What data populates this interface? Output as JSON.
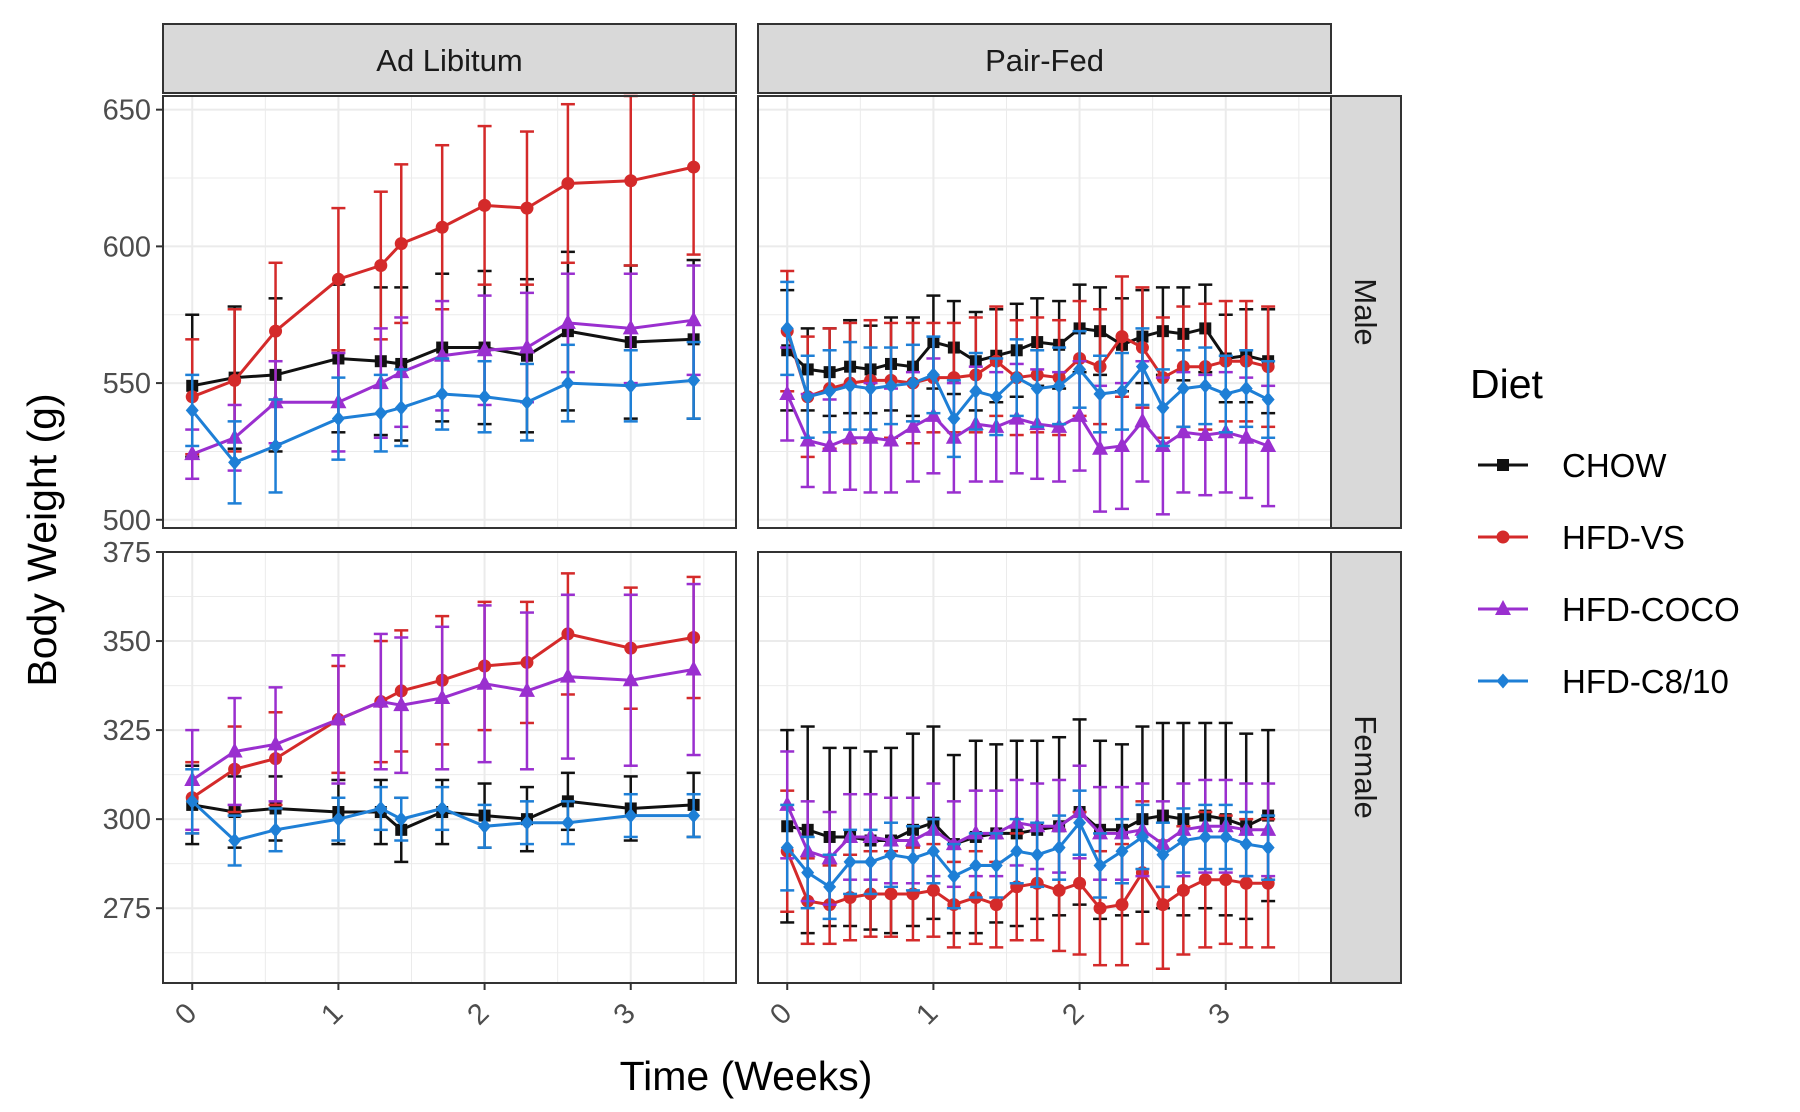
{
  "chart_data": {
    "type": "line",
    "facet_cols": [
      "Ad Libitum",
      "Pair-Fed"
    ],
    "facet_rows": [
      "Male",
      "Female"
    ],
    "xlabel": "Time (Weeks)",
    "ylabel": "Body Weight (g)",
    "x_ticks": [
      0,
      1,
      2,
      3
    ],
    "xlim": [
      -0.2,
      3.72
    ],
    "ylim": {
      "Male": [
        497,
        655
      ],
      "Female": [
        254,
        375
      ]
    },
    "y_ticks": {
      "Male": [
        500,
        550,
        600,
        650
      ],
      "Female": [
        275,
        300,
        325,
        350,
        375
      ]
    },
    "grid": true,
    "legend": {
      "title": "Diet",
      "position": "right",
      "entries": [
        "CHOW",
        "HFD-VS",
        "HFD-COCO",
        "HFD-C8/10"
      ]
    },
    "series_style": {
      "CHOW": {
        "color": "#111111",
        "marker": "square"
      },
      "HFD-VS": {
        "color": "#d42a2a",
        "marker": "circle"
      },
      "HFD-COCO": {
        "color": "#9a2fcf",
        "marker": "triangle"
      },
      "HFD-C8/10": {
        "color": "#1e7fd6",
        "marker": "diamond"
      }
    },
    "panels": [
      {
        "col": "Ad Libitum",
        "row": "Male",
        "x": [
          0,
          0.29,
          0.57,
          1.0,
          1.29,
          1.43,
          1.71,
          2.0,
          2.29,
          2.57,
          3.0,
          3.43
        ],
        "series": [
          {
            "name": "CHOW",
            "mean": [
              549,
              552,
              553,
              559,
              558,
              557,
              563,
              563,
              560,
              569,
              565,
              566
            ],
            "err": [
              26,
              26,
              28,
              27,
              27,
              28,
              27,
              28,
              28,
              29,
              28,
              29
            ]
          },
          {
            "name": "HFD-VS",
            "mean": [
              545,
              551,
              569,
              588,
              593,
              601,
              607,
              615,
              614,
              623,
              624,
              629
            ],
            "err": [
              21,
              26,
              25,
              26,
              27,
              29,
              30,
              29,
              28,
              29,
              31,
              32
            ]
          },
          {
            "name": "HFD-COCO",
            "mean": [
              524,
              530,
              543,
              543,
              550,
              554,
              560,
              562,
              563,
              572,
              570,
              573
            ],
            "err": [
              9,
              12,
              15,
              18,
              20,
              20,
              20,
              20,
              20,
              18,
              20,
              20
            ]
          },
          {
            "name": "HFD-C8/10",
            "mean": [
              540,
              521,
              527,
              537,
              539,
              541,
              546,
              545,
              543,
              550,
              549,
              551
            ],
            "err": [
              13,
              15,
              17,
              15,
              14,
              14,
              13,
              13,
              14,
              14,
              13,
              14
            ]
          }
        ]
      },
      {
        "col": "Pair-Fed",
        "row": "Male",
        "x": [
          0,
          0.14,
          0.29,
          0.43,
          0.57,
          0.71,
          0.86,
          1.0,
          1.14,
          1.29,
          1.43,
          1.57,
          1.71,
          1.86,
          2.0,
          2.14,
          2.29,
          2.43,
          2.57,
          2.71,
          2.86,
          3.0,
          3.14,
          3.29
        ],
        "series": [
          {
            "name": "CHOW",
            "mean": [
              562,
              555,
              554,
              556,
              555,
              557,
              556,
              565,
              563,
              558,
              560,
              562,
              565,
              564,
              570,
              569,
              564,
              567,
              569,
              568,
              570,
              559,
              560,
              558
            ],
            "err": [
              22,
              15,
              16,
              17,
              16,
              17,
              18,
              17,
              17,
              18,
              17,
              17,
              16,
              16,
              16,
              16,
              17,
              17,
              16,
              17,
              16,
              16,
              17,
              19
            ]
          },
          {
            "name": "HFD-VS",
            "mean": [
              569,
              545,
              548,
              550,
              551,
              551,
              550,
              552,
              552,
              553,
              558,
              552,
              553,
              552,
              559,
              556,
              567,
              563,
              552,
              556,
              556,
              558,
              558,
              556
            ],
            "err": [
              22,
              22,
              22,
              22,
              22,
              21,
              22,
              20,
              20,
              21,
              20,
              21,
              21,
              21,
              21,
              21,
              22,
              22,
              22,
              22,
              23,
              22,
              22,
              22
            ]
          },
          {
            "name": "HFD-COCO",
            "mean": [
              546,
              529,
              527,
              530,
              530,
              529,
              534,
              538,
              530,
              535,
              534,
              537,
              535,
              534,
              538,
              526,
              527,
              536,
              527,
              532,
              531,
              532,
              530,
              527
            ],
            "err": [
              17,
              17,
              17,
              19,
              20,
              19,
              20,
              21,
              20,
              21,
              20,
              20,
              20,
              20,
              20,
              23,
              23,
              22,
              25,
              22,
              22,
              22,
              22,
              22
            ]
          },
          {
            "name": "HFD-C8/10",
            "mean": [
              570,
              545,
              547,
              549,
              548,
              549,
              550,
              553,
              537,
              547,
              545,
              552,
              548,
              549,
              555,
              546,
              547,
              556,
              541,
              548,
              549,
              546,
              548,
              544
            ],
            "err": [
              17,
              15,
              15,
              16,
              15,
              14,
              14,
              14,
              14,
              14,
              14,
              14,
              14,
              14,
              14,
              14,
              14,
              14,
              14,
              14,
              14,
              14,
              14,
              14
            ]
          }
        ]
      },
      {
        "col": "Ad Libitum",
        "row": "Female",
        "x": [
          0,
          0.29,
          0.57,
          1.0,
          1.29,
          1.43,
          1.71,
          2.0,
          2.29,
          2.57,
          3.0,
          3.43
        ],
        "series": [
          {
            "name": "CHOW",
            "mean": [
              304,
              302,
              303,
              302,
              302,
              297,
              302,
              301,
              300,
              305,
              303,
              304
            ],
            "err": [
              11,
              10,
              9,
              9,
              9,
              9,
              9,
              9,
              9,
              8,
              9,
              9
            ]
          },
          {
            "name": "HFD-VS",
            "mean": [
              306,
              314,
              317,
              328,
              333,
              336,
              339,
              343,
              344,
              352,
              348,
              351
            ],
            "err": [
              10,
              12,
              13,
              15,
              17,
              17,
              18,
              18,
              17,
              17,
              17,
              17
            ]
          },
          {
            "name": "HFD-COCO",
            "mean": [
              311,
              319,
              321,
              328,
              333,
              332,
              334,
              338,
              336,
              340,
              339,
              342
            ],
            "err": [
              14,
              15,
              16,
              18,
              19,
              19,
              20,
              22,
              22,
              23,
              24,
              24
            ]
          },
          {
            "name": "HFD-C8/10",
            "mean": [
              305,
              294,
              297,
              300,
              303,
              300,
              303,
              298,
              299,
              299,
              301,
              301
            ],
            "err": [
              9,
              7,
              6,
              6,
              6,
              6,
              6,
              6,
              6,
              6,
              6,
              6
            ]
          }
        ]
      },
      {
        "col": "Pair-Fed",
        "row": "Female",
        "x": [
          0,
          0.14,
          0.29,
          0.43,
          0.57,
          0.71,
          0.86,
          1.0,
          1.14,
          1.29,
          1.43,
          1.57,
          1.71,
          1.86,
          2.0,
          2.14,
          2.29,
          2.43,
          2.57,
          2.71,
          2.86,
          3.0,
          3.14,
          3.29
        ],
        "series": [
          {
            "name": "CHOW",
            "mean": [
              298,
              297,
              295,
              295,
              294,
              294,
              297,
              299,
              293,
              295,
              296,
              296,
              297,
              298,
              302,
              297,
              297,
              300,
              301,
              300,
              301,
              300,
              298,
              301
            ],
            "err": [
              27,
              29,
              25,
              25,
              25,
              26,
              27,
              27,
              25,
              27,
              25,
              26,
              25,
              25,
              26,
              25,
              24,
              26,
              26,
              27,
              26,
              27,
              26,
              24
            ]
          },
          {
            "name": "HFD-VS",
            "mean": [
              291,
              277,
              276,
              278,
              279,
              279,
              279,
              280,
              276,
              278,
              276,
              281,
              282,
              280,
              282,
              275,
              276,
              285,
              276,
              280,
              283,
              283,
              282,
              282
            ],
            "err": [
              17,
              12,
              11,
              12,
              12,
              12,
              13,
              13,
              12,
              13,
              12,
              15,
              16,
              17,
              20,
              16,
              17,
              20,
              18,
              18,
              19,
              18,
              18,
              18
            ]
          },
          {
            "name": "HFD-COCO",
            "mean": [
              304,
              291,
              289,
              295,
              295,
              294,
              294,
              297,
              293,
              296,
              296,
              299,
              298,
              298,
              302,
              296,
              296,
              297,
              293,
              297,
              298,
              298,
              297,
              297
            ],
            "err": [
              15,
              14,
              13,
              12,
              12,
              12,
              12,
              13,
              12,
              12,
              12,
              12,
              12,
              13,
              13,
              13,
              13,
              13,
              12,
              13,
              13,
              13,
              13,
              13
            ]
          },
          {
            "name": "HFD-C8/10",
            "mean": [
              292,
              285,
              281,
              288,
              288,
              290,
              289,
              291,
              284,
              287,
              287,
              291,
              290,
              292,
              299,
              287,
              291,
              295,
              290,
              294,
              295,
              295,
              293,
              292
            ],
            "err": [
              12,
              10,
              9,
              9,
              9,
              9,
              9,
              9,
              9,
              9,
              9,
              9,
              9,
              9,
              9,
              9,
              9,
              9,
              9,
              9,
              9,
              9,
              9,
              9
            ]
          }
        ]
      }
    ]
  }
}
